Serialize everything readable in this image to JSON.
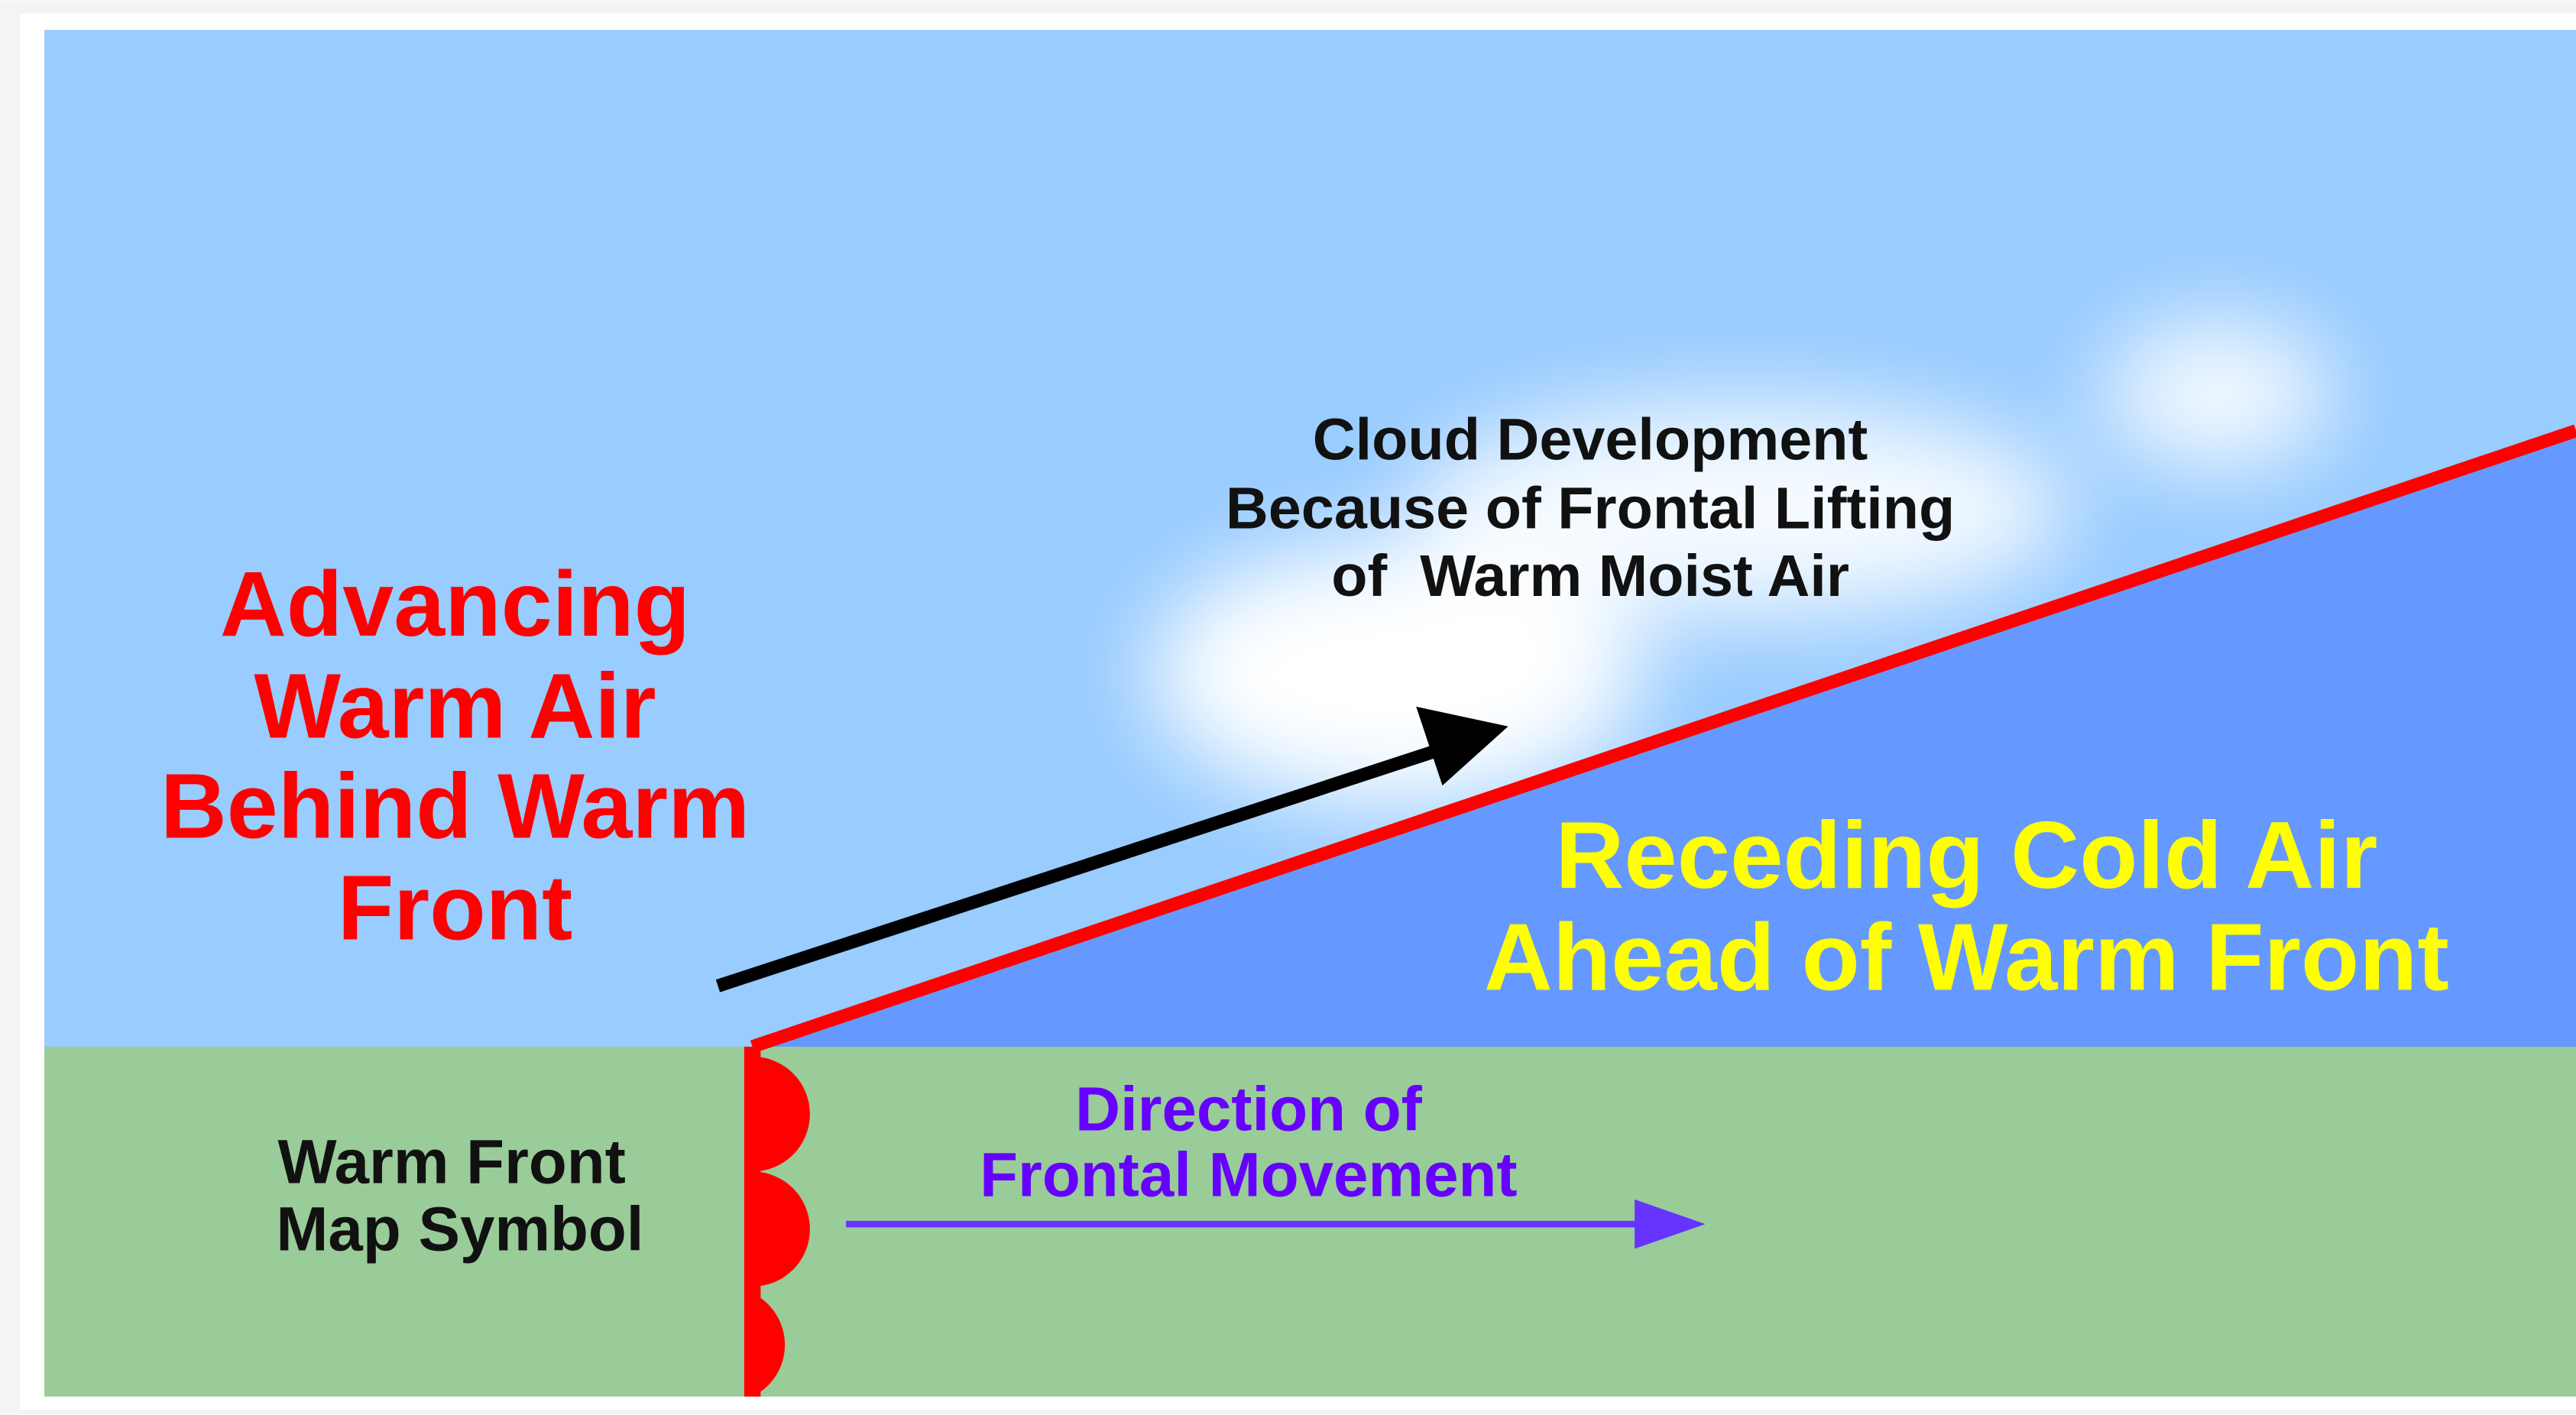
{
  "warm_air_label": [
    "Advancing",
    "Warm Air",
    "Behind Warm",
    "Front"
  ],
  "cloud_label": [
    "Cloud Development",
    "Because of Frontal Lifting",
    "of  Warm Moist Air"
  ],
  "cold_air_label": [
    "Receding Cold Air",
    "Ahead of Warm Front"
  ],
  "symbol_label": [
    "Warm Front",
    "Map Symbol"
  ],
  "movement_label": [
    "Direction of",
    "Frontal Movement"
  ]
}
